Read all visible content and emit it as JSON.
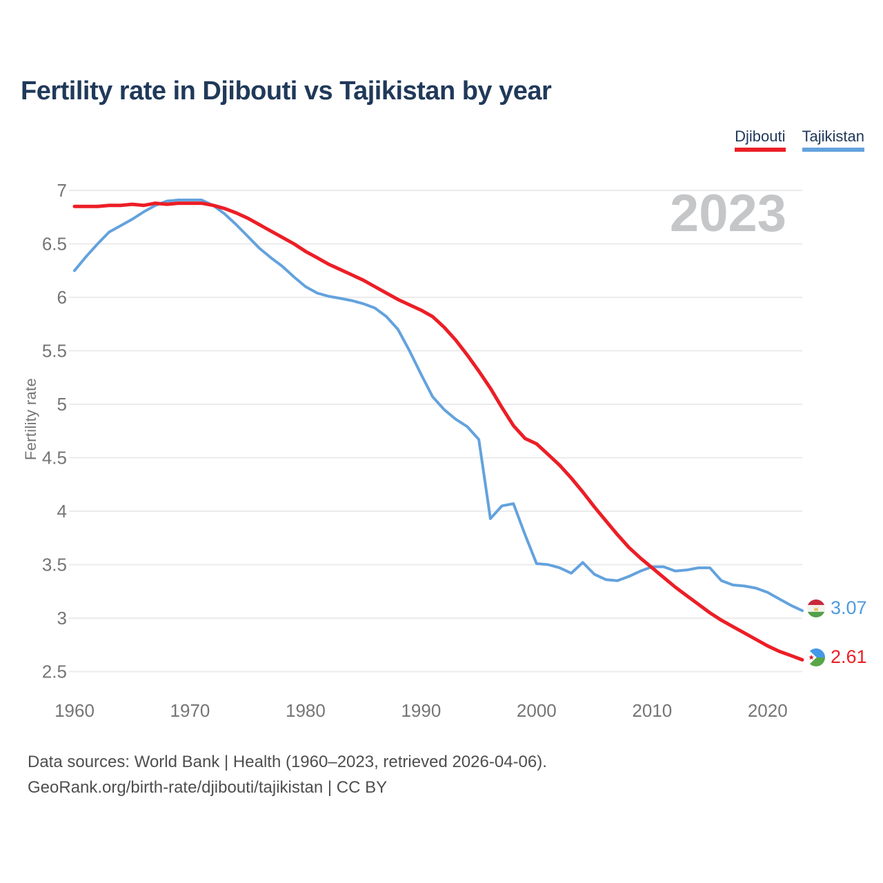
{
  "title": "Fertility rate in Djibouti vs Tajikistan by year",
  "watermark": "2023",
  "legend": [
    {
      "label": "Djibouti",
      "color": "#ec1e26"
    },
    {
      "label": "Tajikistan",
      "color": "#63a2dd"
    }
  ],
  "end_labels": [
    {
      "country": "Tajikistan",
      "value": "3.07",
      "color": "#4e9add",
      "flag": "tajikistan-flag"
    },
    {
      "country": "Djibouti",
      "value": "2.61",
      "color": "#ec1e26",
      "flag": "djibouti-flag"
    }
  ],
  "footer": {
    "line1": "Data sources: World Bank | Health (1960–2023, retrieved 2026-04-06).",
    "line2": "GeoRank.org/birth-rate/djibouti/tajikistan | CC BY"
  },
  "colors": {
    "navy": "#20395a",
    "grid": "#ebebeb",
    "tick": "#757575",
    "watermark": "#c5c6c8",
    "footer": "#4e4e4e"
  },
  "chart_data": {
    "type": "line",
    "title": "Fertility rate in Djibouti vs Tajikistan by year",
    "xlabel": "",
    "ylabel": "Fertility rate",
    "xlim": [
      1960,
      2023
    ],
    "ylim": [
      2.5,
      7
    ],
    "x_ticks": [
      1960,
      1970,
      1980,
      1990,
      2000,
      2010,
      2020
    ],
    "y_ticks": [
      7,
      6.5,
      6,
      5.5,
      5,
      4.5,
      4,
      3.5,
      3,
      2.5
    ],
    "grid": "horizontal",
    "legend_position": "top-right",
    "watermark": "2023",
    "x": [
      1960,
      1961,
      1962,
      1963,
      1964,
      1965,
      1966,
      1967,
      1968,
      1969,
      1970,
      1971,
      1972,
      1973,
      1974,
      1975,
      1976,
      1977,
      1978,
      1979,
      1980,
      1981,
      1982,
      1983,
      1984,
      1985,
      1986,
      1987,
      1988,
      1989,
      1990,
      1991,
      1992,
      1993,
      1994,
      1995,
      1996,
      1997,
      1998,
      1999,
      2000,
      2001,
      2002,
      2003,
      2004,
      2005,
      2006,
      2007,
      2008,
      2009,
      2010,
      2011,
      2012,
      2013,
      2014,
      2015,
      2016,
      2017,
      2018,
      2019,
      2020,
      2021,
      2022,
      2023
    ],
    "series": [
      {
        "name": "Djibouti",
        "color": "#ec1e26",
        "stroke_width": 5,
        "values": [
          6.85,
          6.85,
          6.85,
          6.86,
          6.86,
          6.87,
          6.86,
          6.88,
          6.87,
          6.88,
          6.88,
          6.88,
          6.86,
          6.83,
          6.79,
          6.74,
          6.68,
          6.62,
          6.56,
          6.5,
          6.43,
          6.37,
          6.31,
          6.26,
          6.21,
          6.16,
          6.1,
          6.04,
          5.98,
          5.93,
          5.88,
          5.82,
          5.72,
          5.6,
          5.46,
          5.31,
          5.15,
          4.97,
          4.8,
          4.68,
          4.63,
          4.53,
          4.43,
          4.31,
          4.18,
          4.04,
          3.91,
          3.78,
          3.66,
          3.56,
          3.47,
          3.38,
          3.29,
          3.21,
          3.13,
          3.05,
          2.98,
          2.92,
          2.86,
          2.8,
          2.74,
          2.69,
          2.65,
          2.61
        ]
      },
      {
        "name": "Tajikistan",
        "color": "#63a2dd",
        "stroke_width": 4,
        "values": [
          6.25,
          6.38,
          6.5,
          6.61,
          6.67,
          6.73,
          6.8,
          6.86,
          6.9,
          6.91,
          6.91,
          6.91,
          6.86,
          6.78,
          6.68,
          6.57,
          6.46,
          6.37,
          6.29,
          6.19,
          6.1,
          6.04,
          6.01,
          5.99,
          5.97,
          5.94,
          5.9,
          5.82,
          5.7,
          5.5,
          5.28,
          5.07,
          4.95,
          4.86,
          4.79,
          4.67,
          3.93,
          4.05,
          4.07,
          3.78,
          3.51,
          3.5,
          3.47,
          3.42,
          3.52,
          3.41,
          3.36,
          3.35,
          3.39,
          3.44,
          3.48,
          3.48,
          3.44,
          3.45,
          3.47,
          3.47,
          3.35,
          3.31,
          3.3,
          3.28,
          3.24,
          3.18,
          3.12,
          3.07
        ]
      }
    ]
  }
}
